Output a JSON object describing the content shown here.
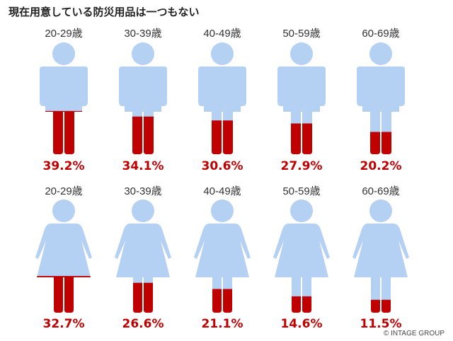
{
  "title": "現在用意している防災用品は一つもない",
  "copyright": "© INTAGE GROUP",
  "colors": {
    "body": "#b4d0f2",
    "fill": "#c00000",
    "percent_text": "#c00000",
    "age_text": "#333333"
  },
  "chart_data": {
    "type": "pictograph",
    "title": "現在用意している防災用品は一つもない",
    "unit": "%",
    "categories": [
      "20-29歳",
      "30-39歳",
      "40-49歳",
      "50-59歳",
      "60-69歳"
    ],
    "series": [
      {
        "icon": "male-figure-icon",
        "values": [
          39.2,
          34.1,
          30.6,
          27.9,
          20.2
        ],
        "labels": [
          "39.2%",
          "34.1%",
          "30.6%",
          "27.9%",
          "20.2%"
        ]
      },
      {
        "icon": "female-figure-icon",
        "values": [
          32.7,
          26.6,
          21.1,
          14.6,
          11.5
        ],
        "labels": [
          "32.7%",
          "26.6%",
          "21.1%",
          "14.6%",
          "11.5%"
        ]
      }
    ]
  }
}
